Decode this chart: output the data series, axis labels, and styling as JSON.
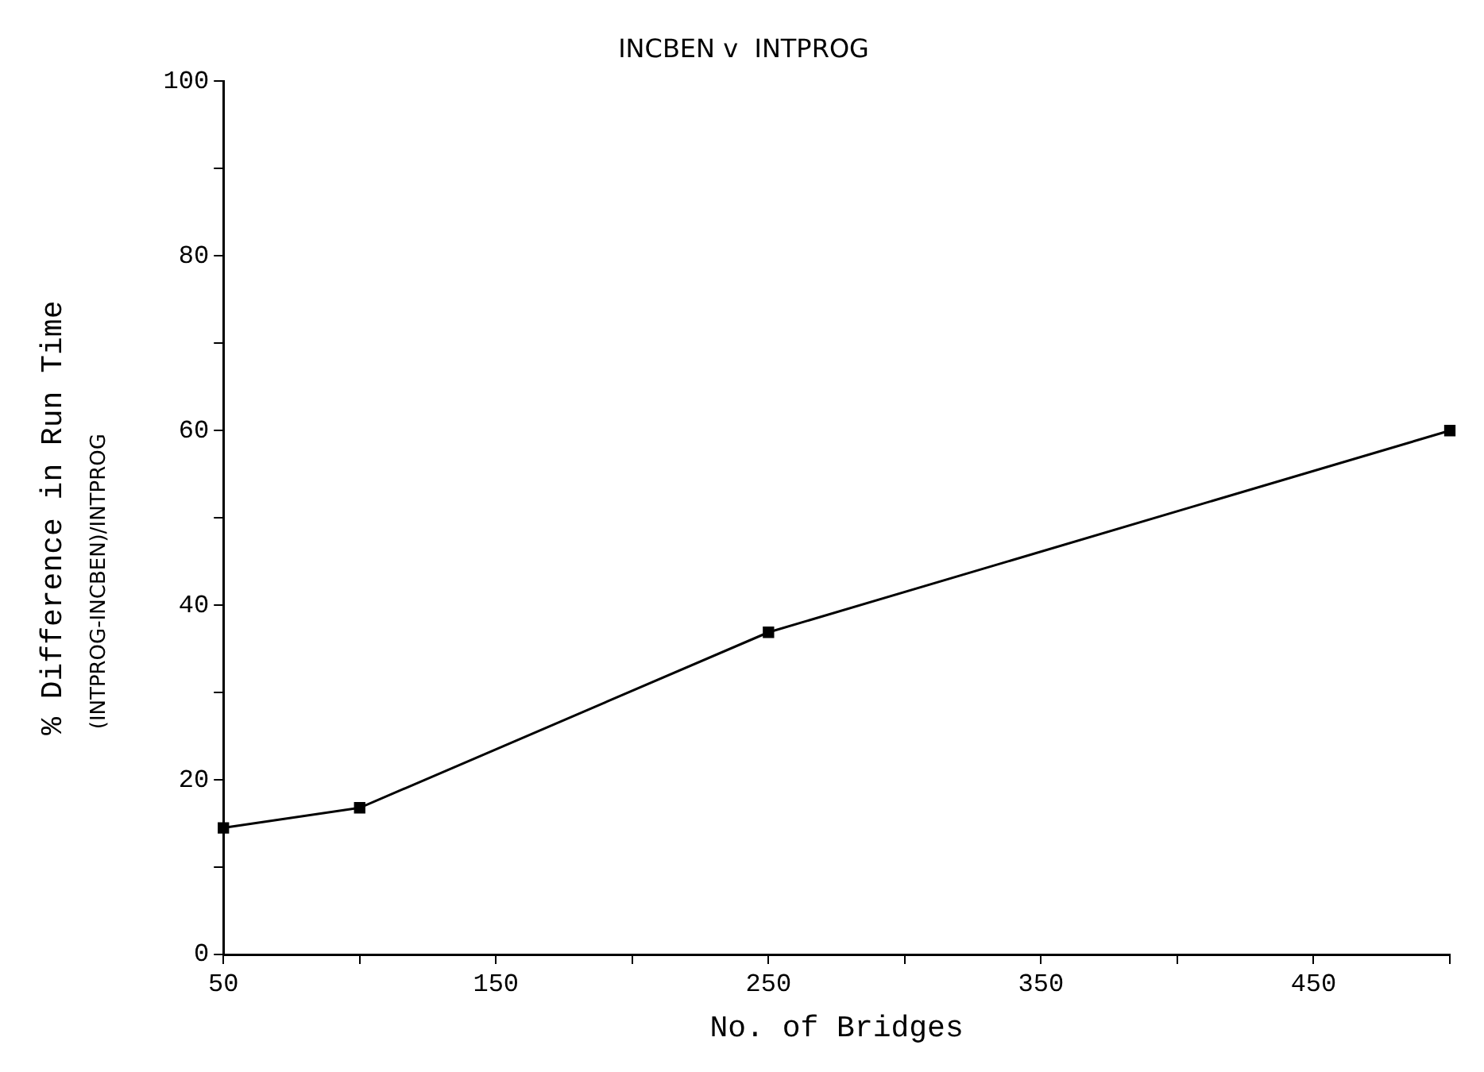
{
  "chart_data": {
    "type": "line",
    "title": "INCBEN v  INTPROG",
    "xlabel": "No. of Bridges",
    "ylabel": "% Difference in Run Time",
    "annotations": [
      "(INTPROG-INCBEN)/INTPROG"
    ],
    "x": [
      50,
      100,
      250,
      500
    ],
    "series": [
      {
        "color": "#000000",
        "values": [
          14.5,
          16.8,
          36.9,
          60
        ]
      }
    ],
    "xlim": [
      50,
      500
    ],
    "xticks": [
      50,
      {
        "value": 100,
        "label": null
      },
      150,
      {
        "value": 200,
        "label": null
      },
      250,
      {
        "value": 300,
        "label": null
      },
      350,
      {
        "value": 400,
        "label": null
      },
      450,
      {
        "value": 500,
        "label": null
      }
    ],
    "ylim": [
      0,
      100
    ],
    "yticks": [
      0,
      {
        "value": 10,
        "label": null
      },
      20,
      {
        "value": 30,
        "label": null
      },
      40,
      {
        "value": 50,
        "label": null
      },
      60,
      {
        "value": 70,
        "label": null
      },
      80,
      {
        "value": 90,
        "label": null
      },
      100
    ],
    "marker": "square",
    "grid": false,
    "legend": false
  }
}
